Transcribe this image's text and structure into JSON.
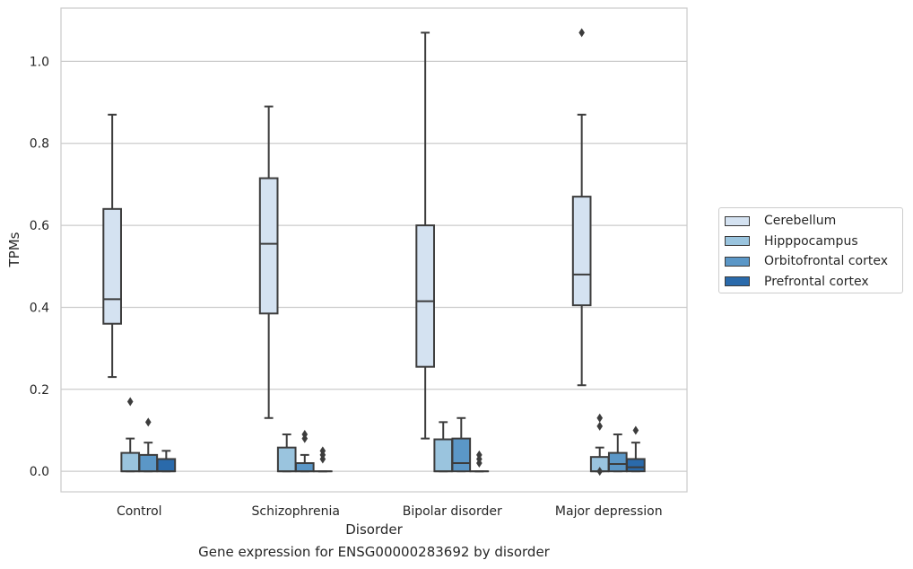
{
  "chart_data": {
    "type": "box",
    "xlabel": "Disorder",
    "ylabel": "TPMs",
    "ylim": [
      -0.05,
      1.13
    ],
    "yticks": [
      0.0,
      0.2,
      0.4,
      0.6,
      0.8,
      1.0
    ],
    "ytick_labels": [
      "0.0",
      "0.2",
      "0.4",
      "0.6",
      "0.8",
      "1.0"
    ],
    "grid": "horizontal",
    "legend_position": "right",
    "categories": [
      "Control",
      "Schizophrenia",
      "Bipolar disorder",
      "Major depression"
    ],
    "series": [
      {
        "name": "Cerebellum",
        "color": "#d4e2f1",
        "boxes": [
          {
            "whislo": 0.23,
            "q1": 0.36,
            "med": 0.42,
            "q3": 0.64,
            "whishi": 0.87,
            "fliers": []
          },
          {
            "whislo": 0.13,
            "q1": 0.385,
            "med": 0.555,
            "q3": 0.715,
            "whishi": 0.89,
            "fliers": []
          },
          {
            "whislo": 0.08,
            "q1": 0.255,
            "med": 0.415,
            "q3": 0.6,
            "whishi": 1.07,
            "fliers": []
          },
          {
            "whislo": 0.21,
            "q1": 0.405,
            "med": 0.48,
            "q3": 0.67,
            "whishi": 0.87,
            "fliers": [
              1.07
            ]
          }
        ]
      },
      {
        "name": "Hipppocampus",
        "color": "#9ac4de",
        "boxes": [
          {
            "whislo": 0.0,
            "q1": 0.0,
            "med": 0.0,
            "q3": 0.045,
            "whishi": 0.08,
            "fliers": [
              0.17
            ]
          },
          {
            "whislo": 0.0,
            "q1": 0.0,
            "med": 0.0,
            "q3": 0.058,
            "whishi": 0.09,
            "fliers": []
          },
          {
            "whislo": 0.0,
            "q1": 0.0,
            "med": 0.0,
            "q3": 0.078,
            "whishi": 0.12,
            "fliers": []
          },
          {
            "whislo": 0.0,
            "q1": 0.0,
            "med": 0.0,
            "q3": 0.035,
            "whishi": 0.058,
            "fliers": [
              0.13,
              0.11,
              0.0
            ]
          }
        ]
      },
      {
        "name": "Orbitofrontal cortex",
        "color": "#5b97c7",
        "boxes": [
          {
            "whislo": 0.0,
            "q1": 0.0,
            "med": 0.0,
            "q3": 0.04,
            "whishi": 0.07,
            "fliers": [
              0.12
            ]
          },
          {
            "whislo": 0.0,
            "q1": 0.0,
            "med": 0.0,
            "q3": 0.02,
            "whishi": 0.04,
            "fliers": [
              0.09,
              0.08
            ]
          },
          {
            "whislo": 0.0,
            "q1": 0.0,
            "med": 0.02,
            "q3": 0.08,
            "whishi": 0.13,
            "fliers": []
          },
          {
            "whislo": 0.0,
            "q1": 0.0,
            "med": 0.018,
            "q3": 0.045,
            "whishi": 0.09,
            "fliers": []
          }
        ]
      },
      {
        "name": "Prefrontal cortex",
        "color": "#2a6aab",
        "boxes": [
          {
            "whislo": 0.0,
            "q1": 0.0,
            "med": 0.0,
            "q3": 0.03,
            "whishi": 0.05,
            "fliers": []
          },
          {
            "whislo": 0.0,
            "q1": 0.0,
            "med": 0.0,
            "q3": 0.0,
            "whishi": 0.0,
            "fliers": [
              0.05,
              0.04,
              0.03
            ]
          },
          {
            "whislo": 0.0,
            "q1": 0.0,
            "med": 0.0,
            "q3": 0.0,
            "whishi": 0.0,
            "fliers": [
              0.04,
              0.03,
              0.02
            ]
          },
          {
            "whislo": 0.0,
            "q1": 0.0,
            "med": 0.01,
            "q3": 0.03,
            "whishi": 0.07,
            "fliers": [
              0.1
            ]
          }
        ]
      }
    ]
  },
  "caption": "Gene expression for ENSG00000283692 by disorder"
}
